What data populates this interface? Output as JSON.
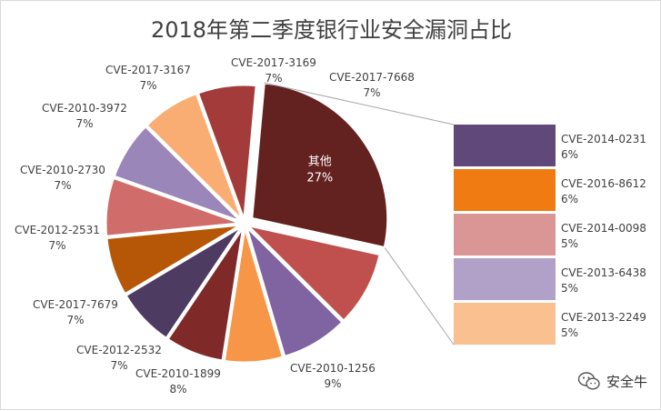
{
  "chart_data": {
    "type": "pie",
    "title": "2018年第二季度银行业安全漏洞占比",
    "slices": [
      {
        "name": "CVE-2017-7668",
        "value": 7,
        "label": "7%",
        "color": "#a23b3a"
      },
      {
        "name": "其他",
        "value": 27,
        "label": "27%",
        "color": "#63211f"
      },
      {
        "name": "CVE-2010-1256",
        "value": 9,
        "label": "9%",
        "color": "#c0504d"
      },
      {
        "name": "CVE-2010-1899",
        "value": 8,
        "label": "8%",
        "color": "#8064a2"
      },
      {
        "name": "CVE-2012-2532",
        "value": 7,
        "label": "7%",
        "color": "#f79646"
      },
      {
        "name": "CVE-2017-7679",
        "value": 7,
        "label": "7%",
        "color": "#7f2a28"
      },
      {
        "name": "CVE-2012-2531",
        "value": 7,
        "label": "7%",
        "color": "#4d3b62"
      },
      {
        "name": "CVE-2010-2730",
        "value": 7,
        "label": "7%",
        "color": "#b65708"
      },
      {
        "name": "CVE-2010-3972",
        "value": 7,
        "label": "7%",
        "color": "#d06d6a"
      },
      {
        "name": "CVE-2017-3167",
        "value": 7,
        "label": "7%",
        "color": "#9a86b8"
      },
      {
        "name": "CVE-2017-3169",
        "value": 7,
        "label": "7%",
        "color": "#f9ad73"
      }
    ],
    "breakdown_of": "其他",
    "breakdown": [
      {
        "name": "CVE-2014-0231",
        "value": 6,
        "label": "6%",
        "color": "#60497a"
      },
      {
        "name": "CVE-2016-8612",
        "value": 6,
        "label": "6%",
        "color": "#f07b12"
      },
      {
        "name": "CVE-2014-0098",
        "value": 5,
        "label": "5%",
        "color": "#da9694"
      },
      {
        "name": "CVE-2013-6438",
        "value": 5,
        "label": "5%",
        "color": "#b1a0c7"
      },
      {
        "name": "CVE-2013-2249",
        "value": 5,
        "label": "5%",
        "color": "#fac090"
      }
    ]
  },
  "watermark": {
    "text": "安全牛",
    "icon": "wechat-icon"
  }
}
